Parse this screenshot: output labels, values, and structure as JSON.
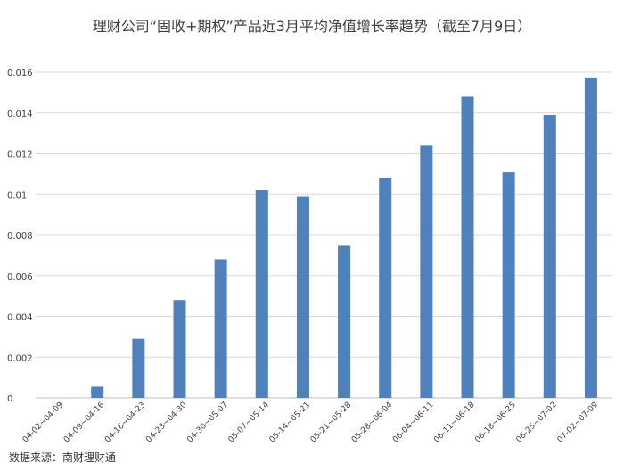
{
  "chart_data": {
    "type": "bar",
    "title": "理财公司“固收+期权”产品近3月平均净值增长率趋势（截至7月9日）",
    "xlabel": "",
    "ylabel": "",
    "categories": [
      "04-02~04-09",
      "04-09~04-16",
      "04-16~04-23",
      "04-23~04-30",
      "04-30~05-07",
      "05-07~05-14",
      "05-14~05-21",
      "05-21~05-28",
      "05-28~06-04",
      "06-04~06-11",
      "06-11~06-18",
      "06-18~06-25",
      "06-25~07-02",
      "07-02~07-09"
    ],
    "values": [
      0,
      0.00055,
      0.0029,
      0.0048,
      0.0068,
      0.0102,
      0.0099,
      0.0075,
      0.0108,
      0.0124,
      0.0148,
      0.0111,
      0.0139,
      0.0157
    ],
    "ylim": [
      0,
      0.016
    ],
    "yticks": [
      "0",
      "0.002",
      "0.004",
      "0.006",
      "0.008",
      "0.01",
      "0.012",
      "0.014",
      "0.016"
    ],
    "grid": true,
    "legend": "none",
    "bar_color": "#4F81BD",
    "grid_color": "#D9D9D9"
  },
  "source_note": "数据来源：南财理财通"
}
